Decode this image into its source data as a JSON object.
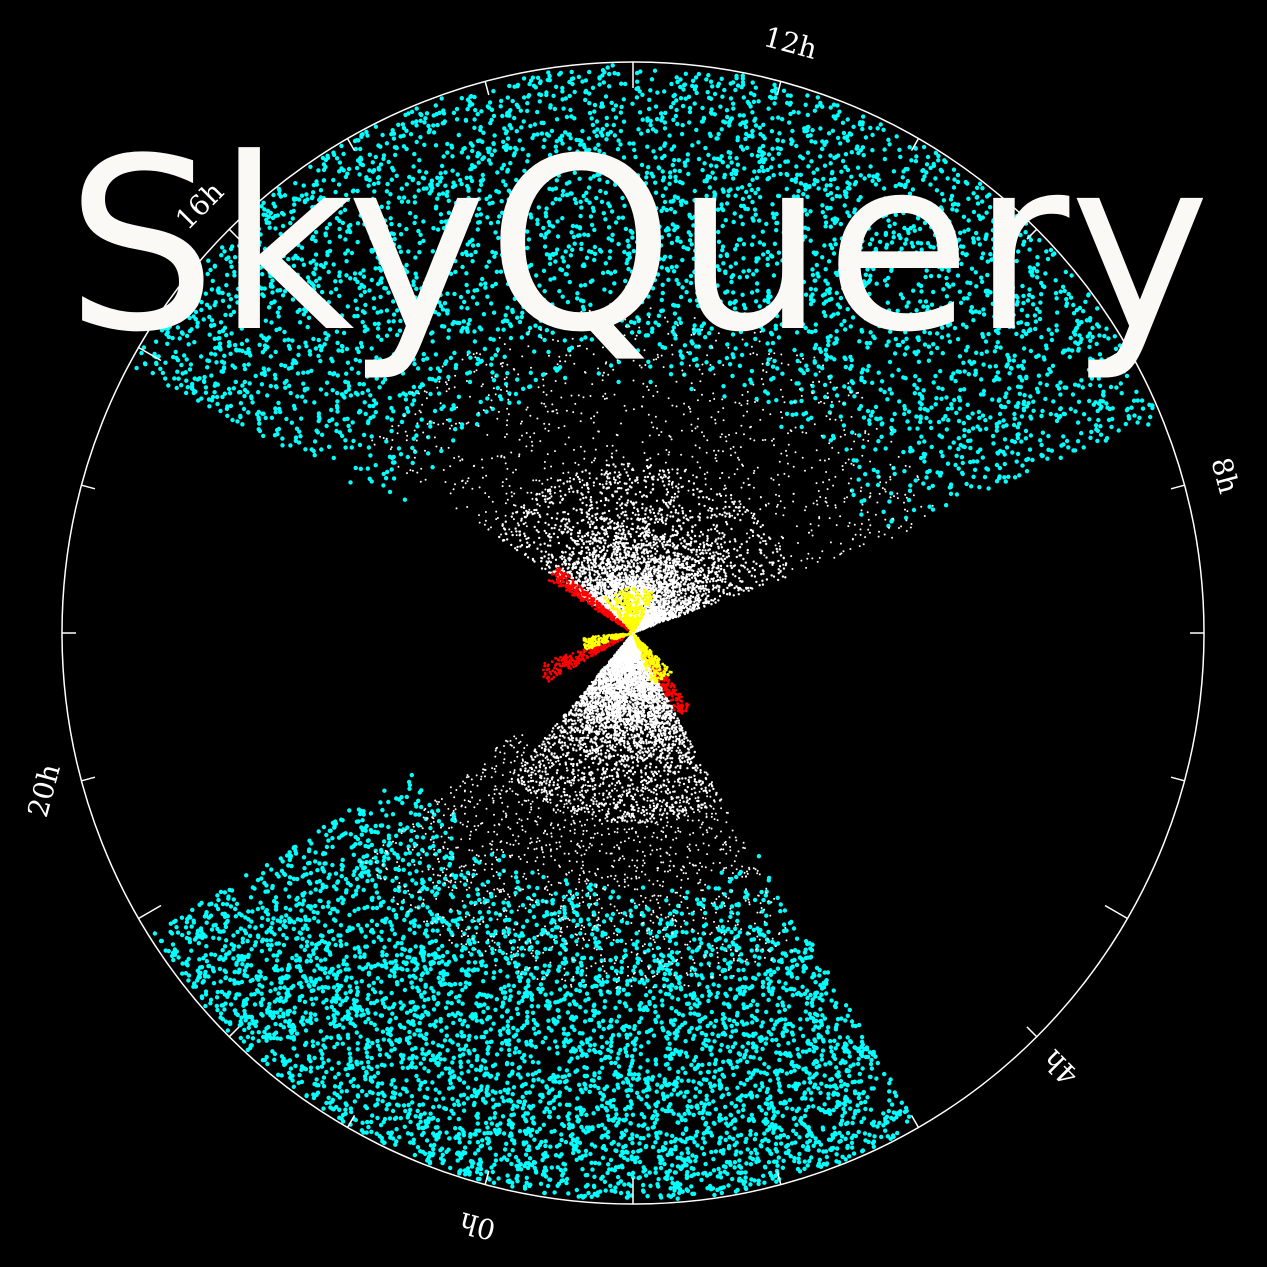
{
  "logo": {
    "text": "SkyQuery"
  },
  "hour_labels": [
    "0h",
    "4h",
    "8h",
    "12h",
    "16h",
    "20h"
  ],
  "colors": {
    "background": "#000000",
    "ring": "#ffffff",
    "outer_survey": "#00ffff",
    "inner_survey": "#ffffff",
    "edge_points_red": "#ff0000",
    "core_points_yellow": "#ffff00",
    "logo": "#fbf9f6"
  },
  "icons": {
    "logo": "skyquery-wordmark"
  }
}
